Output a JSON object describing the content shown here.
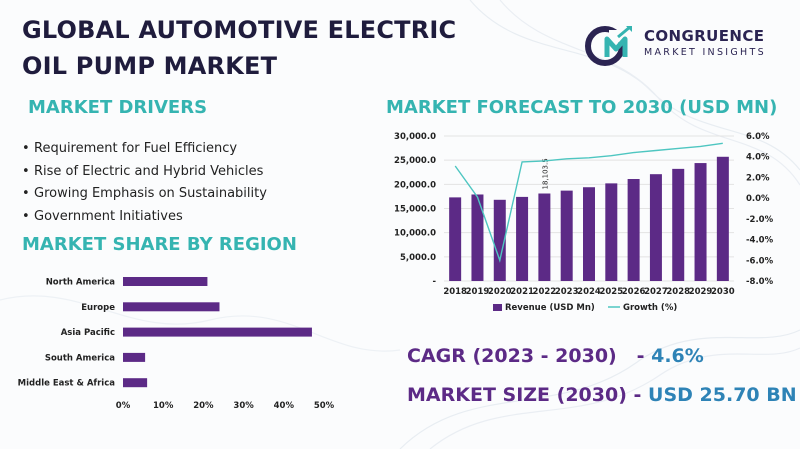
{
  "header": {
    "title_line1": "GLOBAL AUTOMOTIVE ELECTRIC",
    "title_line2": "OIL PUMP MARKET"
  },
  "logo": {
    "name": "CONGRUENCE",
    "tagline": "MARKET INSIGHTS",
    "icon": "cm-logo-icon"
  },
  "drivers": {
    "title": "MARKET DRIVERS",
    "bullet": "•",
    "items": [
      "Requirement for Fuel Efficiency",
      "Rise of Electric and Hybrid Vehicles",
      "Growing Emphasis on Sustainability",
      "Government Initiatives"
    ]
  },
  "stats": {
    "cagr_label": "CAGR (2023 - 2030)",
    "cagr_sep": "-",
    "cagr_value": "4.6%",
    "size_label": "MARKET SIZE (2030)",
    "size_sep": "-",
    "size_value": "USD 25.70 BN"
  },
  "colors": {
    "accent": "#35b4b1",
    "bar": "#5c2a86",
    "title": "#1f1c3d",
    "value": "#2e83b6",
    "line": "#4ec6c1"
  },
  "chart_data": [
    {
      "type": "bar",
      "orientation": "horizontal",
      "title": "MARKET SHARE BY REGION",
      "categories": [
        "North America",
        "Europe",
        "Asia Pacific",
        "South America",
        "Middle East & Africa"
      ],
      "values": [
        21,
        24,
        47,
        5.5,
        6
      ],
      "xlim": [
        0,
        50
      ],
      "xticks": [
        "0%",
        "10%",
        "20%",
        "30%",
        "40%",
        "50%"
      ],
      "grid": false
    },
    {
      "type": "bar",
      "title": "MARKET FORECAST TO 2030 (USD MN)",
      "categories": [
        "2018",
        "2019",
        "2020",
        "2021",
        "2022",
        "2023",
        "2024",
        "2025",
        "2026",
        "2027",
        "2028",
        "2029",
        "2030"
      ],
      "series": [
        {
          "name": "Revenue (USD Mn)",
          "type": "bar",
          "values": [
            17300,
            17900,
            16800,
            17400,
            18103.5,
            18700,
            19400,
            20200,
            21100,
            22100,
            23200,
            24400,
            25700
          ]
        },
        {
          "name": "Growth (%)",
          "type": "line",
          "axis": "right",
          "values": [
            3.1,
            0.1,
            -6.0,
            3.5,
            3.6,
            3.8,
            3.9,
            4.1,
            4.4,
            4.6,
            4.8,
            5.0,
            5.3
          ]
        }
      ],
      "data_labels": [
        {
          "category": "2022",
          "text": "18,103.5"
        }
      ],
      "ylim": [
        0,
        30000
      ],
      "y_ticks": [
        "30,000.0",
        "25,000.0",
        "20,000.0",
        "15,000.0",
        "10,000.0",
        "5,000.0",
        "-"
      ],
      "y2lim": [
        -8,
        6
      ],
      "y2_ticks": [
        "6.0%",
        "4.0%",
        "2.0%",
        "0.0%",
        "-2.0%",
        "-4.0%",
        "-6.0%",
        "-8.0%"
      ],
      "legend": "bottom",
      "grid": true
    }
  ]
}
